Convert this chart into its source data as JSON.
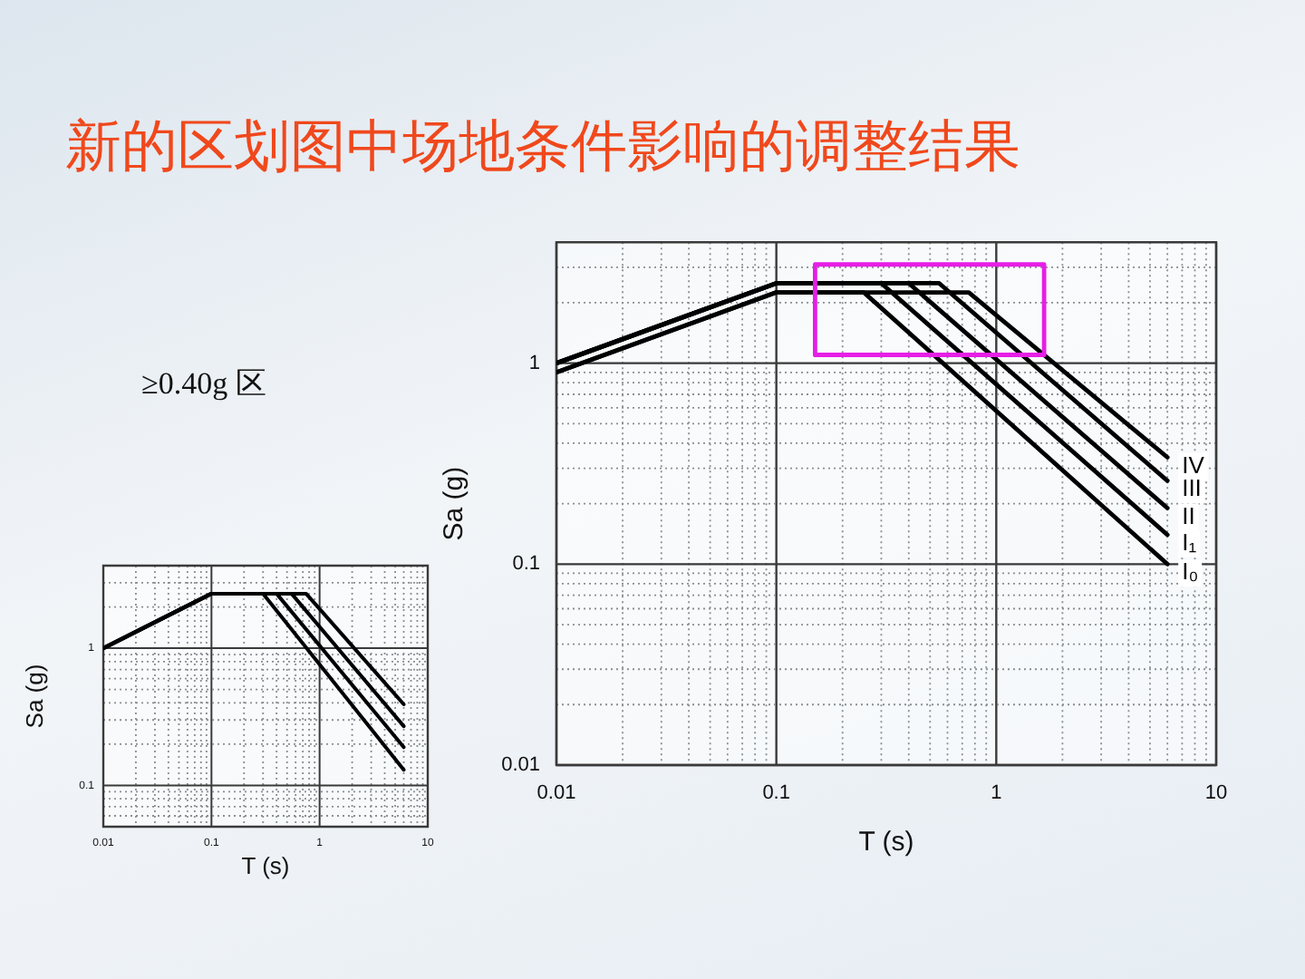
{
  "chart_data": [
    {
      "type": "line",
      "title": "新的区划图中场地条件影响的调整结果",
      "xlabel": "T (s)",
      "ylabel": "Sa (g)",
      "log": "xy",
      "xlim": [
        0.01,
        10
      ],
      "ylim": [
        0.01,
        4
      ],
      "xticks": [
        0.01,
        {
          "value": 0.02,
          "label": null
        },
        {
          "value": 0.03,
          "label": null
        },
        {
          "value": 0.04,
          "label": null
        },
        {
          "value": 0.05,
          "label": null
        },
        {
          "value": 0.06,
          "label": null
        },
        {
          "value": 0.07,
          "label": null
        },
        {
          "value": 0.08,
          "label": null
        },
        {
          "value": 0.09,
          "label": null
        },
        0.1,
        {
          "value": 0.2,
          "label": null
        },
        {
          "value": 0.3,
          "label": null
        },
        {
          "value": 0.4,
          "label": null
        },
        {
          "value": 0.5,
          "label": null
        },
        {
          "value": 0.6,
          "label": null
        },
        {
          "value": 0.7,
          "label": null
        },
        {
          "value": 0.8,
          "label": null
        },
        {
          "value": 0.9,
          "label": null
        },
        1,
        {
          "value": 2,
          "label": null
        },
        {
          "value": 3,
          "label": null
        },
        {
          "value": 4,
          "label": null
        },
        {
          "value": 5,
          "label": null
        },
        {
          "value": 6,
          "label": null
        },
        {
          "value": 7,
          "label": null
        },
        {
          "value": 8,
          "label": null
        },
        {
          "value": 9,
          "label": null
        },
        10
      ],
      "yticks": [
        0.01,
        {
          "value": 0.02,
          "label": null
        },
        {
          "value": 0.03,
          "label": null
        },
        {
          "value": 0.04,
          "label": null
        },
        {
          "value": 0.05,
          "label": null
        },
        {
          "value": 0.06,
          "label": null
        },
        {
          "value": 0.07,
          "label": null
        },
        {
          "value": 0.08,
          "label": null
        },
        {
          "value": 0.09,
          "label": null
        },
        0.1,
        {
          "value": 0.2,
          "label": null
        },
        {
          "value": 0.3,
          "label": null
        },
        {
          "value": 0.4,
          "label": null
        },
        {
          "value": 0.5,
          "label": null
        },
        {
          "value": 0.6,
          "label": null
        },
        {
          "value": 0.7,
          "label": null
        },
        {
          "value": 0.8,
          "label": null
        },
        {
          "value": 0.9,
          "label": null
        },
        1,
        {
          "value": 2,
          "label": null
        },
        {
          "value": 3,
          "label": null
        }
      ],
      "grid": true,
      "series": [
        {
          "name": "IV",
          "color": "#000000",
          "x": [
            0.01,
            0.1,
            0.75,
            6
          ],
          "values": [
            0.9,
            2.25,
            2.25,
            0.34
          ]
        },
        {
          "name": "III",
          "color": "#000000",
          "x": [
            0.01,
            0.1,
            0.55,
            6
          ],
          "values": [
            1,
            2.5,
            2.5,
            0.26
          ]
        },
        {
          "name": "II",
          "color": "#000000",
          "x": [
            0.01,
            0.1,
            0.4,
            6
          ],
          "values": [
            1,
            2.5,
            2.5,
            0.19
          ]
        },
        {
          "name": "I₁",
          "color": "#000000",
          "x": [
            0.01,
            0.1,
            0.3,
            6
          ],
          "values": [
            1,
            2.5,
            2.5,
            0.14
          ]
        },
        {
          "name": "I₀",
          "color": "#000000",
          "x": [
            0.01,
            0.1,
            0.25,
            6
          ],
          "values": [
            0.9,
            2.25,
            2.25,
            0.1
          ]
        },
        {
          "color": "#e61ee6",
          "x": [
            0.15,
            0.15,
            1.65,
            1.65
          ],
          "values": [
            1.1,
            3.1,
            3.1,
            1.1
          ]
        },
        {
          "color": "#e61ee6",
          "x": [
            0.15,
            1.65
          ],
          "values": [
            1.1,
            1.1
          ]
        }
      ]
    },
    {
      "type": "line",
      "title": "≥0.40g 区",
      "xlabel": "T (s)",
      "ylabel": "Sa (g)",
      "log": "xy",
      "xlim": [
        0.01,
        10
      ],
      "ylim": [
        0.05,
        4
      ],
      "xticks": [
        0.01,
        {
          "value": 0.02,
          "label": null
        },
        {
          "value": 0.03,
          "label": null
        },
        {
          "value": 0.04,
          "label": null
        },
        {
          "value": 0.05,
          "label": null
        },
        {
          "value": 0.06,
          "label": null
        },
        {
          "value": 0.07,
          "label": null
        },
        {
          "value": 0.08,
          "label": null
        },
        {
          "value": 0.09,
          "label": null
        },
        0.1,
        {
          "value": 0.2,
          "label": null
        },
        {
          "value": 0.3,
          "label": null
        },
        {
          "value": 0.4,
          "label": null
        },
        {
          "value": 0.5,
          "label": null
        },
        {
          "value": 0.6,
          "label": null
        },
        {
          "value": 0.7,
          "label": null
        },
        {
          "value": 0.8,
          "label": null
        },
        {
          "value": 0.9,
          "label": null
        },
        1,
        {
          "value": 2,
          "label": null
        },
        {
          "value": 3,
          "label": null
        },
        {
          "value": 4,
          "label": null
        },
        {
          "value": 5,
          "label": null
        },
        {
          "value": 6,
          "label": null
        },
        {
          "value": 7,
          "label": null
        },
        {
          "value": 8,
          "label": null
        },
        {
          "value": 9,
          "label": null
        },
        10
      ],
      "yticks": [
        {
          "value": 0.06,
          "label": null
        },
        {
          "value": 0.07,
          "label": null
        },
        {
          "value": 0.08,
          "label": null
        },
        {
          "value": 0.09,
          "label": null
        },
        0.1,
        {
          "value": 0.2,
          "label": null
        },
        {
          "value": 0.3,
          "label": null
        },
        {
          "value": 0.4,
          "label": null
        },
        {
          "value": 0.5,
          "label": null
        },
        {
          "value": 0.6,
          "label": null
        },
        {
          "value": 0.7,
          "label": null
        },
        {
          "value": 0.8,
          "label": null
        },
        {
          "value": 0.9,
          "label": null
        },
        1,
        {
          "value": 2,
          "label": null
        },
        {
          "value": 3,
          "label": null
        }
      ],
      "grid": true,
      "series": [
        {
          "color": "#000000",
          "x": [
            0.01,
            0.1,
            0.75,
            6
          ],
          "values": [
            1,
            2.5,
            2.5,
            0.39
          ]
        },
        {
          "color": "#000000",
          "x": [
            0.01,
            0.1,
            0.55,
            6
          ],
          "values": [
            1,
            2.5,
            2.5,
            0.27
          ]
        },
        {
          "color": "#000000",
          "x": [
            0.01,
            0.1,
            0.4,
            6
          ],
          "values": [
            1,
            2.5,
            2.5,
            0.19
          ]
        },
        {
          "color": "#000000",
          "x": [
            0.01,
            0.1,
            0.3,
            6
          ],
          "values": [
            1,
            2.5,
            2.5,
            0.13
          ]
        }
      ]
    }
  ]
}
